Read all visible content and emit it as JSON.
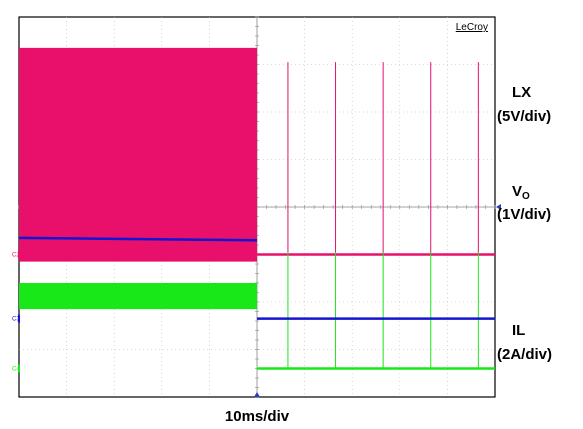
{
  "chart_data": {
    "type": "line",
    "brand": "LeCroy",
    "time_scale": "10ms/div",
    "divisions": {
      "x": 10,
      "y": 8
    },
    "grid": true,
    "trigger_event": {
      "x_div": 5.0,
      "description": "transition from continuous switching to pulsed operation"
    },
    "series": [
      {
        "name": "LX",
        "scale": "(5V/div)",
        "channel": "C2",
        "color": "#e8106a",
        "segments": [
          {
            "x_div": [
              0,
              5.0
            ],
            "kind": "switching band",
            "low_div": -1.15,
            "high_div": 3.35
          },
          {
            "x_div": [
              5.0,
              10
            ],
            "kind": "baseline",
            "level_div": -1.0
          }
        ],
        "spikes": {
          "x_div": [
            5.65,
            6.65,
            7.65,
            8.65,
            9.65
          ],
          "peak_div": 3.05
        }
      },
      {
        "name": "VO",
        "label_main": "V",
        "label_sub": "O",
        "scale": "(1V/div)",
        "channel": "C3",
        "color": "#1414d2",
        "segments": [
          {
            "x_div": [
              0,
              5.0
            ],
            "level_div_start": -0.65,
            "level_div_end": -0.7
          },
          {
            "x_div": [
              5.0,
              10
            ],
            "level_div": -2.35
          }
        ]
      },
      {
        "name": "IL",
        "scale": "(2A/div)",
        "channel": "C4",
        "color": "#18e818",
        "segments": [
          {
            "x_div": [
              0,
              5.0
            ],
            "kind": "ripple band",
            "low_div": -2.15,
            "high_div": -1.6
          },
          {
            "x_div": [
              5.0,
              10
            ],
            "kind": "baseline",
            "level_div": -3.4
          }
        ],
        "spikes": {
          "x_div": [
            5.65,
            6.65,
            7.65,
            8.65,
            9.65
          ],
          "peak_div": -0.95
        }
      }
    ]
  }
}
